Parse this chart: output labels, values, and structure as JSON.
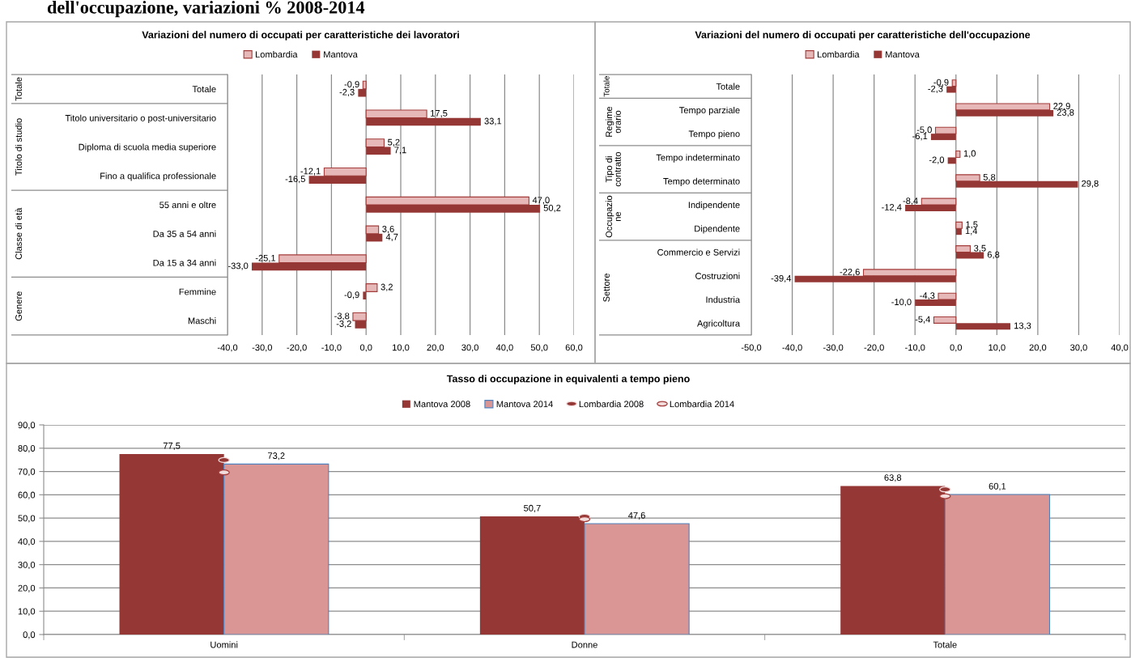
{
  "chart_data": [
    {
      "type": "bar",
      "orientation": "horizontal",
      "title": "Variazioni del numero di occupati per caratteristiche dei lavoratori",
      "legend": "top",
      "grid": "x",
      "annotations": [
        "Totale",
        "Titolo di studio",
        "Classe di età",
        "Genere",
        "dell'occupazione, variazioni % 2008-2014"
      ],
      "categories": [
        "Totale",
        "Titolo universitario o post-universitario",
        "Diploma di scuola media superiore",
        "Fino a qualifica professionale",
        "55 anni e oltre",
        "Da 35 a 54 anni",
        "Da 15 a 34 anni",
        "Femmine",
        "Maschi"
      ],
      "series": [
        {
          "name": "Lombardia",
          "color": "#e6b9b8",
          "values": [
            -0.9,
            17.5,
            5.2,
            -12.1,
            47.0,
            3.6,
            -25.1,
            3.2,
            -3.8
          ],
          "value_labels": [
            "-0,9",
            "17,5",
            "5,2",
            "-12,1",
            "47,0",
            "3,6",
            "-25,1",
            "3,2",
            "-3,8"
          ]
        },
        {
          "name": "Mantova",
          "color": "#953735",
          "values": [
            -2.3,
            33.1,
            7.1,
            -16.5,
            50.2,
            4.7,
            -33.0,
            -0.9,
            -3.2
          ],
          "value_labels": [
            "-2,3",
            "33,1",
            "7,1",
            "-16,5",
            "50,2",
            "4,7",
            "-33,0",
            "-0,9",
            "-3,2"
          ]
        }
      ],
      "xlim": [
        -40,
        60
      ],
      "xticks": [
        {
          "value": -40,
          "label": "-40,0"
        },
        {
          "value": -30,
          "label": "-30,0"
        },
        {
          "value": -20,
          "label": "-20,0"
        },
        {
          "value": -10,
          "label": "-10,0"
        },
        {
          "value": 0,
          "label": "0,0"
        },
        {
          "value": 10,
          "label": "10,0"
        },
        {
          "value": 20,
          "label": "20,0"
        },
        {
          "value": 30,
          "label": "30,0"
        },
        {
          "value": 40,
          "label": "40,0"
        },
        {
          "value": 50,
          "label": "50,0"
        },
        {
          "value": 60,
          "label": "60,0"
        }
      ]
    },
    {
      "type": "bar",
      "orientation": "horizontal",
      "title": "Variazioni del numero di occupati per caratteristiche dell'occupazione",
      "legend": "top",
      "grid": "x",
      "annotations": [
        "Totale",
        "Regime orario",
        "Tipo di contratto",
        "Occupazione",
        "Settore"
      ],
      "categories": [
        "Totale",
        "Tempo parziale",
        "Tempo pieno",
        "Tempo indeterminato",
        "Tempo determinato",
        "Indipendente",
        "Dipendente",
        "Commercio e Servizi",
        "Costruzioni",
        "Industria",
        "Agricoltura"
      ],
      "series": [
        {
          "name": "Lombardia",
          "color": "#e6b9b8",
          "values": [
            -0.9,
            22.9,
            -5.0,
            1.0,
            5.8,
            -8.4,
            1.5,
            3.5,
            -22.6,
            -4.3,
            -5.4
          ],
          "value_labels": [
            "-0,9",
            "22,9",
            "-5,0",
            "1,0",
            "5,8",
            "-8,4",
            "1,5",
            "3,5",
            "-22,6",
            "-4,3",
            "-5,4"
          ]
        },
        {
          "name": "Mantova",
          "color": "#953735",
          "values": [
            -2.3,
            23.8,
            -6.1,
            -2.0,
            29.8,
            -12.4,
            1.4,
            6.8,
            -39.4,
            -10.0,
            13.3
          ],
          "value_labels": [
            "-2,3",
            "23,8",
            "-6,1",
            "-2,0",
            "29,8",
            "-12,4",
            "1,4",
            "6,8",
            "-39,4",
            "-10,0",
            "13,3"
          ]
        }
      ],
      "xlim": [
        -50,
        40
      ],
      "xticks": [
        {
          "value": -50,
          "label": "-50,0"
        },
        {
          "value": -40,
          "label": "-40,0"
        },
        {
          "value": -30,
          "label": "-30,0"
        },
        {
          "value": -20,
          "label": "-20,0"
        },
        {
          "value": -10,
          "label": "-10,0"
        },
        {
          "value": 0,
          "label": "0,0"
        },
        {
          "value": 10,
          "label": "10,0"
        },
        {
          "value": 20,
          "label": "20,0"
        },
        {
          "value": 30,
          "label": "30,0"
        },
        {
          "value": 40,
          "label": "40,0"
        }
      ]
    },
    {
      "type": "bar",
      "title": "Tasso di occupazione in equivalenti a tempo pieno",
      "legend": "top",
      "grid": "y",
      "categories": [
        "Uomini",
        "Donne",
        "Totale"
      ],
      "ylim": [
        0,
        90
      ],
      "yticks": [
        {
          "value": 0,
          "label": "0,0"
        },
        {
          "value": 10,
          "label": "10,0"
        },
        {
          "value": 20,
          "label": "20,0"
        },
        {
          "value": 30,
          "label": "30,0"
        },
        {
          "value": 40,
          "label": "40,0"
        },
        {
          "value": 50,
          "label": "50,0"
        },
        {
          "value": 60,
          "label": "60,0"
        },
        {
          "value": 70,
          "label": "70,0"
        },
        {
          "value": 80,
          "label": "80,0"
        },
        {
          "value": 90,
          "label": "90,0"
        }
      ],
      "series": [
        {
          "name": "Mantova 2008",
          "color": "#953735",
          "values": [
            77.5,
            50.7,
            63.8
          ],
          "value_labels": [
            "77,5",
            "50,7",
            "63,8"
          ]
        },
        {
          "name": "Mantova 2014",
          "color": "#d99694",
          "values": [
            73.2,
            47.6,
            60.1
          ],
          "value_labels": [
            "73,2",
            "47,6",
            "60,1"
          ]
        },
        {
          "name": "Lombardia 2008",
          "type": "scatter",
          "color": "#953735",
          "x": [
            "Uomini",
            "Donne",
            "Totale"
          ],
          "values": [
            74.9,
            50.6,
            62.3
          ]
        },
        {
          "name": "Lombardia 2014",
          "type": "scatter",
          "color": "#f2dcdb",
          "x": [
            "Uomini",
            "Donne",
            "Totale"
          ],
          "values": [
            69.6,
            49.5,
            59.4
          ]
        }
      ]
    }
  ]
}
